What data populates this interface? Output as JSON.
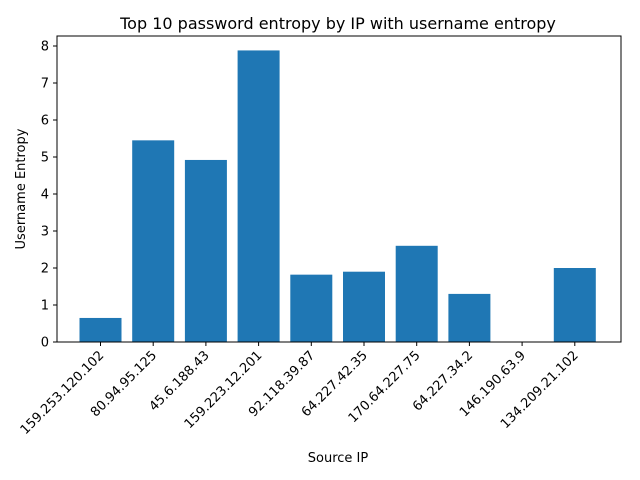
{
  "chart_data": {
    "type": "bar",
    "title": "Top 10 password entropy by IP with username entropy",
    "xlabel": "Source IP",
    "ylabel": "Username Entropy",
    "categories": [
      "159.253.120.102",
      "80.94.95.125",
      "45.6.188.43",
      "159.223.12.201",
      "92.118.39.87",
      "64.227.42.35",
      "170.64.227.75",
      "64.227.34.2",
      "146.190.63.9",
      "134.209.21.102"
    ],
    "values": [
      0.65,
      5.45,
      4.92,
      7.88,
      1.82,
      1.9,
      2.6,
      1.3,
      0,
      2.0
    ],
    "ylim": [
      0,
      8.27
    ],
    "yticks": [
      0,
      1,
      2,
      3,
      4,
      5,
      6,
      7,
      8
    ],
    "bar_color": "#1f77b4",
    "grid": false,
    "legend": "none"
  }
}
